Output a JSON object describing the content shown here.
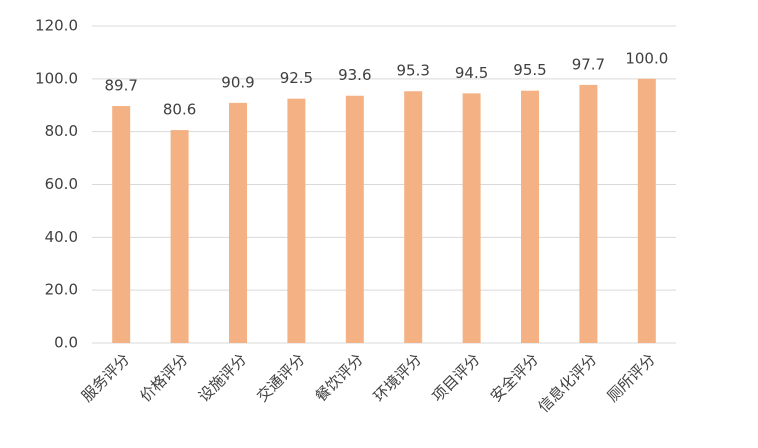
{
  "chart_data": {
    "type": "bar",
    "categories": [
      "服务评分",
      "价格评分",
      "设施评分",
      "交通评分",
      "餐饮评分",
      "环境评分",
      "项目评分",
      "安全评分",
      "信息化评分",
      "厕所评分"
    ],
    "values": [
      89.7,
      80.6,
      90.9,
      92.5,
      93.6,
      95.3,
      94.5,
      95.5,
      97.7,
      100
    ],
    "value_labels": [
      "89.7",
      "80.6",
      "90.9",
      "92.5",
      "93.6",
      "95.3",
      "94.5",
      "95.5",
      "97.7",
      "100.0"
    ],
    "color": "#f4b183",
    "ylim": [
      0,
      120
    ],
    "yticks": [
      {
        "value": 0,
        "label": "0.0"
      },
      {
        "value": 20,
        "label": "20.0"
      },
      {
        "value": 40,
        "label": "40.0"
      },
      {
        "value": 60,
        "label": "60.0"
      },
      {
        "value": 80,
        "label": "80.0"
      },
      {
        "value": 100,
        "label": "100.0"
      },
      {
        "value": 120,
        "label": "120.0"
      }
    ],
    "grid": true
  }
}
